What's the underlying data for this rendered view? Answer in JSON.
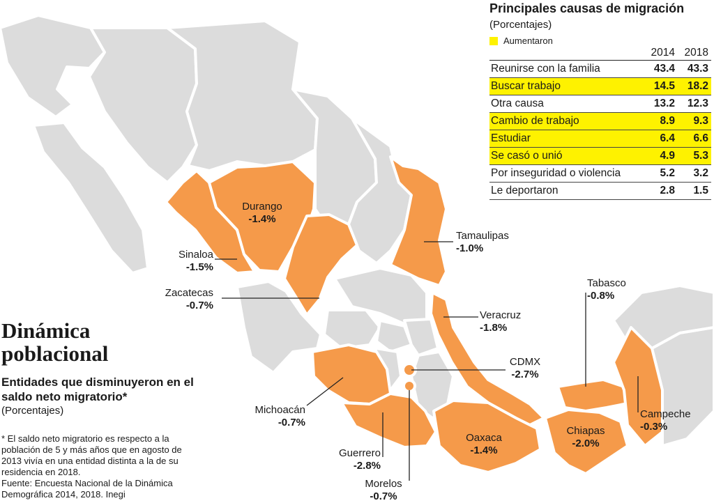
{
  "title": "Dinámica poblacional",
  "title_lines": [
    "Dinámica",
    "poblacional"
  ],
  "subtitle": "Entidades que disminuyeron en el saldo neto migratorio*",
  "unit": "(Porcentajes)",
  "notes": [
    "* El saldo neto migratorio es respecto a la población de 5 y más años que en agosto de 2013 vivía en una entidad distinta a la de su residencia en 2018.",
    "Fuente: Encuesta Nacional de la Dinámica Demográfica 2014, 2018. Inegi"
  ],
  "colors": {
    "highlight_state": "#f59a4a",
    "other_state": "#dcdcdc",
    "increase": "#fef200"
  },
  "states": [
    {
      "name": "Sinaloa",
      "value": "-1.5%"
    },
    {
      "name": "Durango",
      "value": "-1.4%"
    },
    {
      "name": "Zacatecas",
      "value": "-0.7%"
    },
    {
      "name": "Tamaulipas",
      "value": "-1.0%"
    },
    {
      "name": "Veracruz",
      "value": "-1.8%"
    },
    {
      "name": "Tabasco",
      "value": "-0.8%"
    },
    {
      "name": "CDMX",
      "value": "-2.7%"
    },
    {
      "name": "Michoacán",
      "value": "-0.7%"
    },
    {
      "name": "Campeche",
      "value": "-0.3%"
    },
    {
      "name": "Oaxaca",
      "value": "-1.4%"
    },
    {
      "name": "Chiapas",
      "value": "-2.0%"
    },
    {
      "name": "Guerrero",
      "value": "-2.8%"
    },
    {
      "name": "Morelos",
      "value": "-0.7%"
    }
  ],
  "panel": {
    "title": "Principales causas de migración",
    "unit": "(Porcentajes)",
    "legend": "Aumentaron",
    "years": [
      "2014",
      "2018"
    ],
    "rows": [
      {
        "cause": "Reunirse con la familia",
        "v2014": "43.4",
        "v2018": "43.3",
        "increased": false
      },
      {
        "cause": "Buscar trabajo",
        "v2014": "14.5",
        "v2018": "18.2",
        "increased": true
      },
      {
        "cause": "Otra causa",
        "v2014": "13.2",
        "v2018": "12.3",
        "increased": false
      },
      {
        "cause": "Cambio de trabajo",
        "v2014": "8.9",
        "v2018": "9.3",
        "increased": true
      },
      {
        "cause": "Estudiar",
        "v2014": "6.4",
        "v2018": "6.6",
        "increased": true
      },
      {
        "cause": "Se casó o unió",
        "v2014": "4.9",
        "v2018": "5.3",
        "increased": true
      },
      {
        "cause": "Por inseguridad o violencia",
        "v2014": "5.2",
        "v2018": "3.2",
        "increased": false
      },
      {
        "cause": "Le deportaron",
        "v2014": "2.8",
        "v2018": "1.5",
        "increased": false
      }
    ]
  }
}
